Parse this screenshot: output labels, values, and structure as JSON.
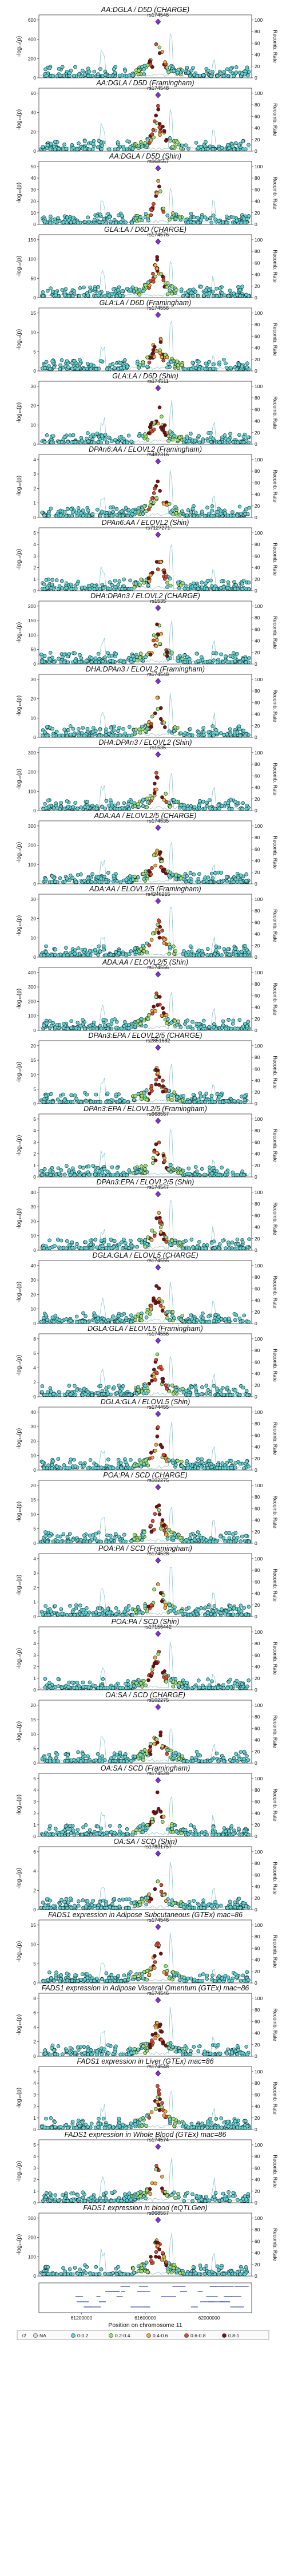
{
  "figure": {
    "ylabel": "-log₁₀(p)",
    "y2label": "Recomb. Rate",
    "xlabel": "Position on chromosome 11",
    "x_ticks": [
      "61200000",
      "61600000",
      "62000000"
    ],
    "legend": {
      "title": "r2",
      "items": [
        "NA",
        "0-0.2",
        "0.2-0.4",
        "0.4-0.6",
        "0.6-0.8",
        "0.8-1"
      ],
      "colors": [
        "#dddddd",
        "#5fd4d6",
        "#9be26e",
        "#f2a93b",
        "#e3462a",
        "#7b0f10"
      ]
    },
    "colors": {
      "low": "#5fd4d6",
      "lead": "#8a2be2",
      "recomb": "#8fc4cc",
      "gene": "#5a6fb5"
    }
  },
  "chart_data": [
    {
      "type": "scatter",
      "title": "AA:DGLA / D5D (CHARGE)",
      "lead_snp": "rs174546",
      "y_ticks": [
        "0",
        "200",
        "400",
        "600"
      ],
      "y2_ticks": [
        "0",
        "20",
        "40",
        "60",
        "80",
        "100"
      ]
    },
    {
      "type": "scatter",
      "title": "AA:DGLA / D5D (Framingham)",
      "lead_snp": "rs174548",
      "y_ticks": [
        "0",
        "20",
        "40",
        "60"
      ],
      "y2_ticks": [
        "0",
        "20",
        "40",
        "60",
        "80",
        "100"
      ]
    },
    {
      "type": "scatter",
      "title": "AA:DGLA / D5D (Shin)",
      "lead_snp": "rs968567",
      "y_ticks": [
        "0",
        "10",
        "20",
        "30",
        "40",
        "50"
      ],
      "y2_ticks": [
        "0",
        "20",
        "40",
        "60",
        "80",
        "100"
      ]
    },
    {
      "type": "scatter",
      "title": "GLA:LA / D6D (CHARGE)",
      "lead_snp": "rs174576",
      "y_ticks": [
        "0",
        "50",
        "100",
        "150"
      ],
      "y2_ticks": [
        "0",
        "20",
        "40",
        "60",
        "80",
        "100"
      ]
    },
    {
      "type": "scatter",
      "title": "GLA:LA / D6D (Framingham)",
      "lead_snp": "rs174556",
      "y_ticks": [
        "0",
        "5",
        "10",
        "15"
      ],
      "y2_ticks": [
        "0",
        "20",
        "40",
        "60",
        "80",
        "100"
      ]
    },
    {
      "type": "scatter",
      "title": "GLA:LA / D6D (Shin)",
      "lead_snp": "rs174611",
      "y_ticks": [
        "0",
        "10",
        "20",
        "30"
      ],
      "y2_ticks": [
        "0",
        "20",
        "40",
        "60",
        "80",
        "100"
      ]
    },
    {
      "type": "scatter",
      "title": "DPAn6:AA / ELOVL2 (Framingham)",
      "lead_snp": "rs482316",
      "y_ticks": [
        "0",
        "1",
        "2",
        "3",
        "4"
      ],
      "y2_ticks": [
        "0",
        "20",
        "40",
        "60",
        "80",
        "100"
      ]
    },
    {
      "type": "scatter",
      "title": "DPAn6:AA / ELOVL2 (Shin)",
      "lead_snp": "rs7127271",
      "y_ticks": [
        "0",
        "1",
        "2",
        "3",
        "4",
        "5"
      ],
      "y2_ticks": [
        "0",
        "20",
        "40",
        "60",
        "80",
        "100"
      ]
    },
    {
      "type": "scatter",
      "title": "DHA:DPAn3 / ELOVL2 (CHARGE)",
      "lead_snp": "rs1535",
      "y_ticks": [
        "0",
        "50",
        "100",
        "150",
        "200"
      ],
      "y2_ticks": [
        "0",
        "20",
        "40",
        "60",
        "80",
        "100"
      ]
    },
    {
      "type": "scatter",
      "title": "DHA:DPAn3 / ELOVL2 (Framingham)",
      "lead_snp": "rs174548",
      "y_ticks": [
        "0",
        "10",
        "20",
        "30"
      ],
      "y2_ticks": [
        "0",
        "20",
        "40",
        "60",
        "80",
        "100"
      ]
    },
    {
      "type": "scatter",
      "title": "DHA:DPAn3 / ELOVL2 (Shin)",
      "lead_snp": "rs1535",
      "y_ticks": [
        "0",
        "100",
        "200",
        "300"
      ],
      "y2_ticks": [
        "0",
        "20",
        "40",
        "60",
        "80",
        "100"
      ]
    },
    {
      "type": "scatter",
      "title": "ADA:AA / ELOVL2/5 (CHARGE)",
      "lead_snp": "rs174535",
      "y_ticks": [
        "0",
        "100",
        "200",
        "300"
      ],
      "y2_ticks": [
        "0",
        "20",
        "40",
        "60",
        "80",
        "100"
      ]
    },
    {
      "type": "scatter",
      "title": "ADA:AA / ELOVL2/5 (Framingham)",
      "lead_snp": "rs4246215",
      "y_ticks": [
        "0",
        "10",
        "20",
        "30"
      ],
      "y2_ticks": [
        "0",
        "20",
        "40",
        "60",
        "80",
        "100"
      ]
    },
    {
      "type": "scatter",
      "title": "ADA:AA / ELOVL2/5 (Shin)",
      "lead_snp": "rs174556",
      "y_ticks": [
        "0",
        "100",
        "200",
        "300",
        "400"
      ],
      "y2_ticks": [
        "0",
        "20",
        "40",
        "60",
        "80",
        "100"
      ]
    },
    {
      "type": "scatter",
      "title": "DPAn3:EPA / ELOVL2/5 (CHARGE)",
      "lead_snp": "rs2851682",
      "y_ticks": [
        "0",
        "5",
        "10",
        "15",
        "20"
      ],
      "y2_ticks": [
        "0",
        "20",
        "40",
        "60",
        "80",
        "100"
      ]
    },
    {
      "type": "scatter",
      "title": "DPAn3:EPA / ELOVL2/5 (Framingham)",
      "lead_snp": "rs968567",
      "y_ticks": [
        "0",
        "1",
        "2",
        "3",
        "4",
        "5"
      ],
      "y2_ticks": [
        "0",
        "20",
        "40",
        "60",
        "80",
        "100"
      ]
    },
    {
      "type": "scatter",
      "title": "DPAn3:EPA / ELOVL2/5 (Shin)",
      "lead_snp": "rs174547",
      "y_ticks": [
        "0",
        "10",
        "20",
        "30",
        "40"
      ],
      "y2_ticks": [
        "0",
        "20",
        "40",
        "60",
        "80",
        "100"
      ]
    },
    {
      "type": "scatter",
      "title": "DGLA:GLA / ELOVL5 (CHARGE)",
      "lead_snp": "rs174555",
      "y_ticks": [
        "0",
        "10",
        "20",
        "30",
        "40"
      ],
      "y2_ticks": [
        "0",
        "20",
        "40",
        "60",
        "80",
        "100"
      ]
    },
    {
      "type": "scatter",
      "title": "DGLA:GLA / ELOVL5 (Framingham)",
      "lead_snp": "rs174556",
      "y_ticks": [
        "0",
        "2",
        "4",
        "6",
        "8"
      ],
      "y2_ticks": [
        "0",
        "20",
        "40",
        "60",
        "80",
        "100"
      ]
    },
    {
      "type": "scatter",
      "title": "DGLA:GLA / ELOVL5 (Shin)",
      "lead_snp": "rs174455",
      "y_ticks": [
        "0",
        "10",
        "20",
        "30",
        "40"
      ],
      "y2_ticks": [
        "0",
        "20",
        "40",
        "60",
        "80",
        "100"
      ]
    },
    {
      "type": "scatter",
      "title": "POA:PA / SCD (CHARGE)",
      "lead_snp": "rs102275",
      "y_ticks": [
        "0",
        "5",
        "10",
        "15",
        "20"
      ],
      "y2_ticks": [
        "0",
        "20",
        "40",
        "60",
        "80",
        "100"
      ]
    },
    {
      "type": "scatter",
      "title": "POA:PA / SCD (Framingham)",
      "lead_snp": "rs174528",
      "y_ticks": [
        "0",
        "1",
        "2",
        "3",
        "4"
      ],
      "y2_ticks": [
        "0",
        "20",
        "40",
        "60",
        "80",
        "100"
      ]
    },
    {
      "type": "scatter",
      "title": "POA:PA / SCD (Shin)",
      "lead_snp": "rs17156442",
      "y_ticks": [
        "0",
        "1",
        "2",
        "3",
        "4",
        "5"
      ],
      "y2_ticks": [
        "0",
        "20",
        "40",
        "60",
        "80",
        "100"
      ]
    },
    {
      "type": "scatter",
      "title": "OA:SA / SCD (CHARGE)",
      "lead_snp": "rs102275",
      "y_ticks": [
        "0",
        "5",
        "10",
        "15",
        "20"
      ],
      "y2_ticks": [
        "0",
        "20",
        "40",
        "60",
        "80",
        "100"
      ]
    },
    {
      "type": "scatter",
      "title": "OA:SA / SCD (Framingham)",
      "lead_snp": "rs174528",
      "y_ticks": [
        "0",
        "1",
        "2",
        "3",
        "4",
        "5"
      ],
      "y2_ticks": [
        "0",
        "20",
        "40",
        "60",
        "80",
        "100"
      ]
    },
    {
      "type": "scatter",
      "title": "OA:SA / SCD (Shin)",
      "lead_snp": "rs17831757",
      "y_ticks": [
        "0",
        "2",
        "4",
        "6"
      ],
      "y2_ticks": [
        "0",
        "20",
        "40",
        "60",
        "80",
        "100"
      ]
    },
    {
      "type": "scatter",
      "title": "FADS1 expression in Adipose Subcutaneous (GTEx) mac=86",
      "lead_snp": "rs174546",
      "y_ticks": [
        "0",
        "5",
        "10",
        "15"
      ],
      "y2_ticks": [
        "0",
        "20",
        "40",
        "60",
        "80",
        "100"
      ]
    },
    {
      "type": "scatter",
      "title": "FADS1 expression in Adipose Visceral Omentum (GTEx) mac=86",
      "lead_snp": "rs174546",
      "y_ticks": [
        "0",
        "2",
        "4",
        "6",
        "8"
      ],
      "y2_ticks": [
        "0",
        "20",
        "40",
        "60",
        "80",
        "100"
      ]
    },
    {
      "type": "scatter",
      "title": "FADS1 expression in Liver (GTEx) mac=86",
      "lead_snp": "rs174548",
      "y_ticks": [
        "0",
        "1",
        "2",
        "3",
        "4",
        "5"
      ],
      "y2_ticks": [
        "0",
        "20",
        "40",
        "60",
        "80",
        "100"
      ]
    },
    {
      "type": "scatter",
      "title": "FADS1 expression in Whole Blood (GTEx) mac=86",
      "lead_snp": "rs174574",
      "y_ticks": [
        "0",
        "1",
        "2",
        "3",
        "4",
        "5"
      ],
      "y2_ticks": [
        "0",
        "20",
        "40",
        "60",
        "80",
        "100"
      ]
    },
    {
      "type": "scatter",
      "title": "FADS1 expression in blood (eQTLGen)",
      "lead_snp": "rs968567",
      "y_ticks": [
        "0",
        "100",
        "200",
        "300"
      ],
      "y2_ticks": [
        "0",
        "20",
        "40",
        "60",
        "80",
        "100"
      ]
    }
  ]
}
